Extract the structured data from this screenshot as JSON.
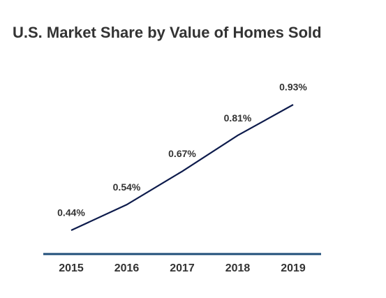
{
  "chart_data": {
    "type": "line",
    "title": "U.S. Market Share by Value of Homes Sold",
    "categories": [
      "2015",
      "2016",
      "2017",
      "2018",
      "2019"
    ],
    "values": [
      0.44,
      0.54,
      0.67,
      0.81,
      0.93
    ],
    "value_labels": [
      "0.44%",
      "0.54%",
      "0.67%",
      "0.81%",
      "0.93%"
    ],
    "color": "#0d1b4c"
  }
}
